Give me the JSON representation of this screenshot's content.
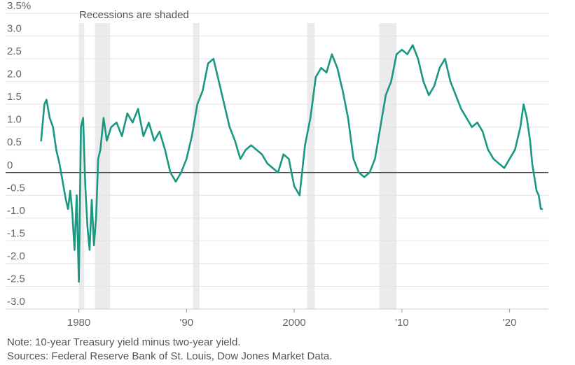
{
  "chart_data": {
    "type": "line",
    "annotation": "Recessions are shaded",
    "y_ticks": [
      {
        "value": 3.5,
        "label": "3.5%"
      },
      {
        "value": 3.0,
        "label": "3.0"
      },
      {
        "value": 2.5,
        "label": "2.5"
      },
      {
        "value": 2.0,
        "label": "2.0"
      },
      {
        "value": 1.5,
        "label": "1.5"
      },
      {
        "value": 1.0,
        "label": "1.0"
      },
      {
        "value": 0.5,
        "label": "0.5"
      },
      {
        "value": 0.0,
        "label": "0"
      },
      {
        "value": -0.5,
        "label": "-0.5"
      },
      {
        "value": -1.0,
        "label": "-1.0"
      },
      {
        "value": -1.5,
        "label": "-1.5"
      },
      {
        "value": -2.0,
        "label": "-2.0"
      },
      {
        "value": -2.5,
        "label": "-2.5"
      },
      {
        "value": -3.0,
        "label": "-3.0"
      }
    ],
    "x_ticks": [
      {
        "value": 1980,
        "label": "1980"
      },
      {
        "value": 1990,
        "label": "'90"
      },
      {
        "value": 2000,
        "label": "2000"
      },
      {
        "value": 2010,
        "label": "'10"
      },
      {
        "value": 2020,
        "label": "'20"
      }
    ],
    "xlim": [
      1973.2,
      2023.6
    ],
    "ylim": [
      -3.0,
      3.5
    ],
    "recessions": [
      [
        1980.0,
        1980.5
      ],
      [
        1981.5,
        1982.9
      ],
      [
        1990.6,
        1991.2
      ],
      [
        2001.2,
        2001.9
      ],
      [
        2007.9,
        2009.5
      ]
    ],
    "series": [
      {
        "color": "#1a9882",
        "x": [
          1976.5,
          1976.8,
          1977.0,
          1977.3,
          1977.6,
          1977.9,
          1978.2,
          1978.5,
          1978.8,
          1979.0,
          1979.2,
          1979.4,
          1979.6,
          1979.8,
          1980.0,
          1980.2,
          1980.4,
          1980.6,
          1980.8,
          1981.0,
          1981.2,
          1981.4,
          1981.6,
          1981.8,
          1982.0,
          1982.3,
          1982.6,
          1983.0,
          1983.5,
          1984.0,
          1984.5,
          1985.0,
          1985.5,
          1986.0,
          1986.5,
          1987.0,
          1987.5,
          1988.0,
          1988.5,
          1989.0,
          1989.5,
          1990.0,
          1990.5,
          1991.0,
          1991.5,
          1992.0,
          1992.5,
          1993.0,
          1993.5,
          1994.0,
          1994.5,
          1995.0,
          1995.5,
          1996.0,
          1996.5,
          1997.0,
          1997.5,
          1998.0,
          1998.5,
          1999.0,
          1999.5,
          2000.0,
          2000.5,
          2001.0,
          2001.5,
          2002.0,
          2002.5,
          2003.0,
          2003.5,
          2004.0,
          2004.5,
          2005.0,
          2005.5,
          2006.0,
          2006.5,
          2007.0,
          2007.5,
          2008.0,
          2008.5,
          2009.0,
          2009.5,
          2010.0,
          2010.5,
          2011.0,
          2011.5,
          2012.0,
          2012.5,
          2013.0,
          2013.5,
          2014.0,
          2014.5,
          2015.0,
          2015.5,
          2016.0,
          2016.5,
          2017.0,
          2017.5,
          2018.0,
          2018.5,
          2019.0,
          2019.5,
          2020.0,
          2020.5,
          2021.0,
          2021.3,
          2021.6,
          2021.9,
          2022.1,
          2022.3,
          2022.5,
          2022.7,
          2022.9,
          2023.0
        ],
        "values": [
          0.7,
          1.5,
          1.6,
          1.2,
          1.0,
          0.5,
          0.2,
          -0.2,
          -0.6,
          -0.8,
          -0.4,
          -0.9,
          -1.7,
          -0.5,
          -2.4,
          1.0,
          1.2,
          -0.3,
          -1.2,
          -1.7,
          -0.6,
          -1.6,
          -1.0,
          0.3,
          0.5,
          1.2,
          0.7,
          1.0,
          1.1,
          0.8,
          1.3,
          1.1,
          1.4,
          0.8,
          1.1,
          0.7,
          0.9,
          0.5,
          0.0,
          -0.2,
          0.0,
          0.3,
          0.8,
          1.5,
          1.8,
          2.4,
          2.5,
          2.0,
          1.5,
          1.0,
          0.7,
          0.3,
          0.5,
          0.6,
          0.5,
          0.4,
          0.2,
          0.1,
          0.0,
          0.4,
          0.3,
          -0.3,
          -0.5,
          0.6,
          1.2,
          2.1,
          2.3,
          2.2,
          2.6,
          2.3,
          1.8,
          1.2,
          0.3,
          0.0,
          -0.1,
          0.0,
          0.3,
          1.0,
          1.7,
          2.0,
          2.6,
          2.7,
          2.6,
          2.8,
          2.5,
          2.0,
          1.7,
          1.9,
          2.3,
          2.5,
          2.0,
          1.7,
          1.4,
          1.2,
          1.0,
          1.1,
          0.9,
          0.5,
          0.3,
          0.2,
          0.1,
          0.3,
          0.5,
          1.0,
          1.5,
          1.2,
          0.7,
          0.2,
          -0.1,
          -0.4,
          -0.5,
          -0.8,
          -0.8
        ]
      }
    ],
    "notes": [
      "Note: 10-year Treasury yield minus two-year yield.",
      "Sources: Federal Reserve Bank of St. Louis, Dow Jones Market Data."
    ]
  }
}
